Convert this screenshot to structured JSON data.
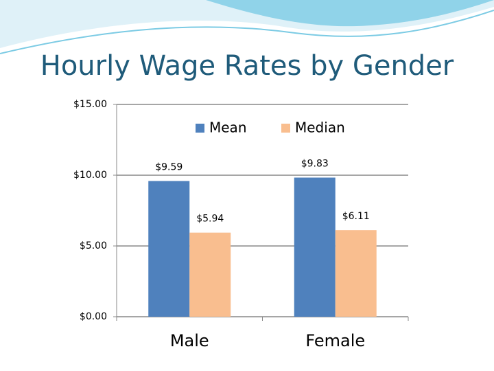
{
  "chart_data": {
    "type": "bar",
    "title": "Hourly Wage Rates by Gender",
    "categories": [
      "Male",
      "Female"
    ],
    "series": [
      {
        "name": "Mean",
        "color": "#4f81bd",
        "values": [
          9.59,
          9.83
        ],
        "value_labels": [
          "$9.59",
          "$9.83"
        ]
      },
      {
        "name": "Median",
        "color": "#f9be8f",
        "values": [
          5.94,
          6.11
        ],
        "value_labels": [
          "$5.94",
          "$6.11"
        ]
      }
    ],
    "ylim": [
      0,
      15
    ],
    "yticks": [
      {
        "value": 0,
        "label": "$0.00"
      },
      {
        "value": 5,
        "label": "$5.00"
      },
      {
        "value": 10,
        "label": "$10.00"
      },
      {
        "value": 15,
        "label": "$15.00"
      }
    ],
    "grid": true
  }
}
